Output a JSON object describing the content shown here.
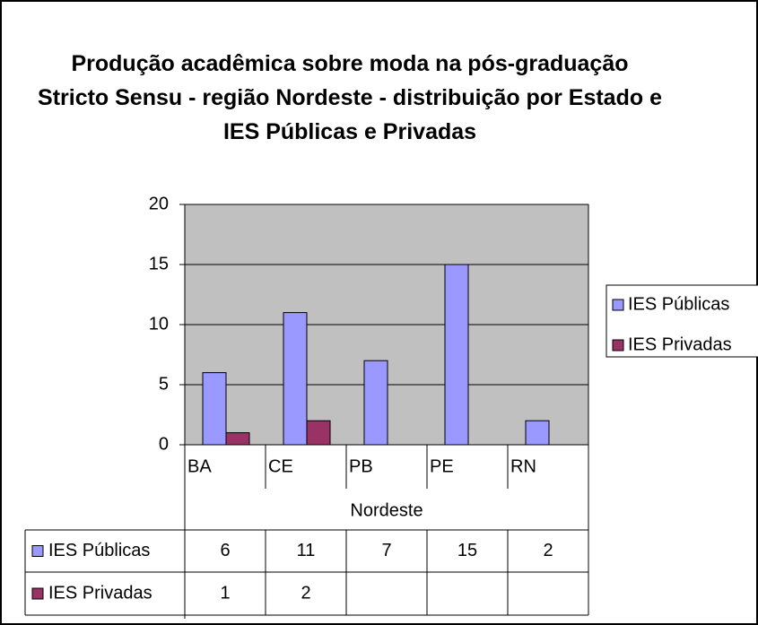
{
  "chart_data": {
    "type": "bar",
    "title": "Produção acadêmica sobre moda na pós-graduação Stricto Sensu - região Nordeste - distribuição por Estado e IES Públicas e Privadas",
    "categories": [
      "BA",
      "CE",
      "PB",
      "PE",
      "RN"
    ],
    "group_label": "Nordeste",
    "series": [
      {
        "name": "IES Públicas",
        "color": "#9999ff",
        "values": [
          6,
          11,
          7,
          15,
          2
        ]
      },
      {
        "name": "IES Privadas",
        "color": "#993366",
        "values": [
          1,
          2,
          null,
          null,
          null
        ]
      }
    ],
    "ylim": [
      0,
      20
    ],
    "yticks": [
      0,
      5,
      10,
      15,
      20
    ],
    "grid": true,
    "legend": "right",
    "plot_background": "#c0c0c0"
  }
}
